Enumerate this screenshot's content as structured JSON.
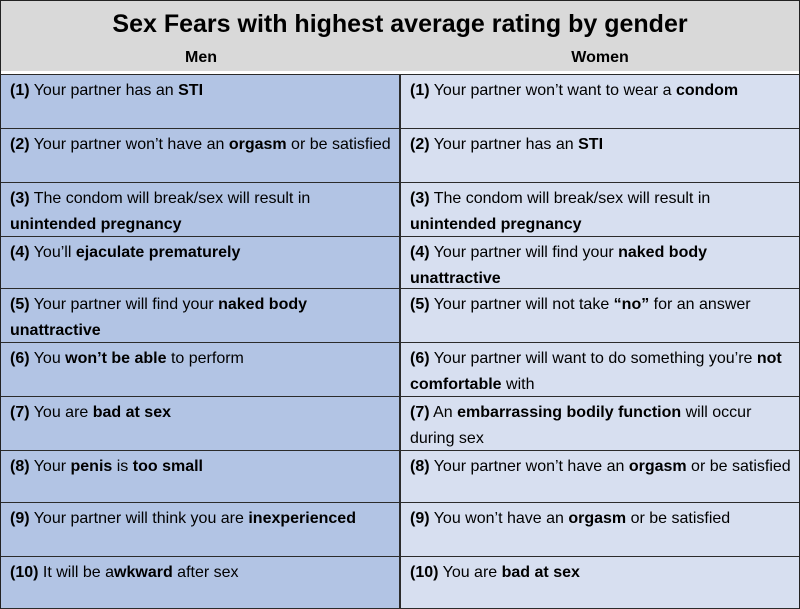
{
  "title": "Sex Fears with highest average rating by gender",
  "columns": {
    "men": "Men",
    "women": "Women"
  },
  "rows": [
    {
      "men": [
        {
          "t": "(1)",
          "b": true
        },
        {
          "t": " Your partner has an "
        },
        {
          "t": "STI",
          "b": true
        }
      ],
      "women": [
        {
          "t": "(1)",
          "b": true
        },
        {
          "t": " Your partner won’t want to wear a "
        },
        {
          "t": "condom",
          "b": true
        }
      ]
    },
    {
      "men": [
        {
          "t": "(2)",
          "b": true
        },
        {
          "t": " Your partner won’t have an "
        },
        {
          "t": "orgasm",
          "b": true
        },
        {
          "t": " or be satisfied"
        }
      ],
      "women": [
        {
          "t": "(2)",
          "b": true
        },
        {
          "t": " Your partner has an "
        },
        {
          "t": "STI",
          "b": true
        }
      ]
    },
    {
      "men": [
        {
          "t": "(3)",
          "b": true
        },
        {
          "t": " The condom will break/sex will result in "
        },
        {
          "t": "unintended pregnancy",
          "b": true
        }
      ],
      "women": [
        {
          "t": "(3)",
          "b": true
        },
        {
          "t": " The condom will break/sex will result in "
        },
        {
          "t": "unintended pregnancy",
          "b": true
        }
      ]
    },
    {
      "men": [
        {
          "t": "(4)",
          "b": true
        },
        {
          "t": " You’ll "
        },
        {
          "t": "ejaculate prematurely",
          "b": true
        }
      ],
      "women": [
        {
          "t": "(4)",
          "b": true
        },
        {
          "t": " Your partner will find your "
        },
        {
          "t": "naked body unattractive",
          "b": true
        }
      ]
    },
    {
      "men": [
        {
          "t": "(5)",
          "b": true
        },
        {
          "t": " Your partner will find your "
        },
        {
          "t": "naked body unattractive",
          "b": true
        }
      ],
      "women": [
        {
          "t": "(5)",
          "b": true
        },
        {
          "t": " Your partner will not take "
        },
        {
          "t": "“no”",
          "b": true
        },
        {
          "t": " for an answer"
        }
      ]
    },
    {
      "men": [
        {
          "t": "(6)",
          "b": true
        },
        {
          "t": " You "
        },
        {
          "t": "won’t be able",
          "b": true
        },
        {
          "t": " to perform"
        }
      ],
      "women": [
        {
          "t": "(6)",
          "b": true
        },
        {
          "t": " Your partner will want to do something you’re "
        },
        {
          "t": "not comfortable",
          "b": true
        },
        {
          "t": " with"
        }
      ]
    },
    {
      "men": [
        {
          "t": "(7)",
          "b": true
        },
        {
          "t": " You are "
        },
        {
          "t": "bad at sex",
          "b": true
        }
      ],
      "women": [
        {
          "t": "(7)",
          "b": true
        },
        {
          "t": " An "
        },
        {
          "t": "embarrassing bodily function",
          "b": true
        },
        {
          "t": " will occur during sex"
        }
      ]
    },
    {
      "men": [
        {
          "t": "(8)",
          "b": true
        },
        {
          "t": " Your "
        },
        {
          "t": "penis",
          "b": true
        },
        {
          "t": " is "
        },
        {
          "t": "too small",
          "b": true
        }
      ],
      "women": [
        {
          "t": "(8)",
          "b": true
        },
        {
          "t": " Your partner won’t have an "
        },
        {
          "t": "orgasm",
          "b": true
        },
        {
          "t": " or be satisfied"
        }
      ]
    },
    {
      "men": [
        {
          "t": "(9)",
          "b": true
        },
        {
          "t": " Your partner will think you are "
        },
        {
          "t": "inexperienced",
          "b": true
        }
      ],
      "women": [
        {
          "t": "(9)",
          "b": true
        },
        {
          "t": " You won’t have an "
        },
        {
          "t": "orgasm",
          "b": true
        },
        {
          "t": " or be satisfied"
        }
      ]
    },
    {
      "men": [
        {
          "t": "(10)",
          "b": true
        },
        {
          "t": " It will be a"
        },
        {
          "t": "wkward",
          "b": true
        },
        {
          "t": " after sex"
        }
      ],
      "women": [
        {
          "t": "(10)",
          "b": true
        },
        {
          "t": " You are "
        },
        {
          "t": "bad at sex",
          "b": true
        }
      ]
    }
  ],
  "colors": {
    "header_bg": "#d9d9d9",
    "men_bg": "#b2c4e4",
    "women_bg": "#d7dff0",
    "border": "#2b2b2b"
  }
}
